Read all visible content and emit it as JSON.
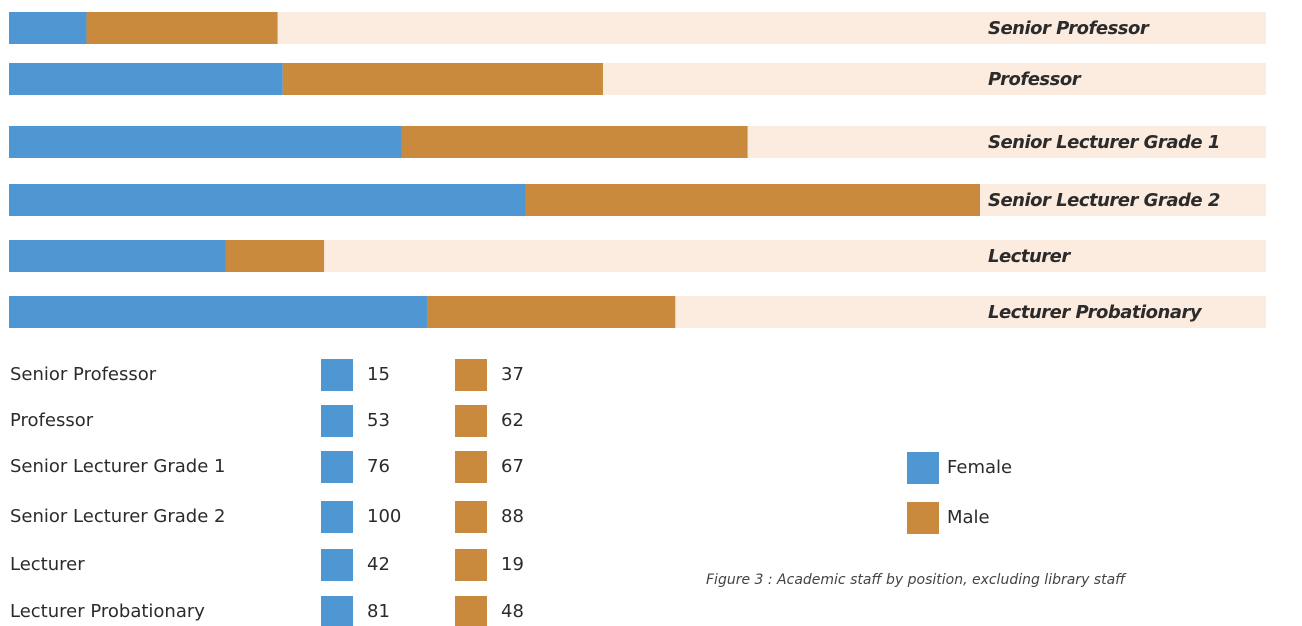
{
  "chart_data": {
    "type": "bar",
    "caption": "Figure 3 : Academic staff by position, excluding library staff",
    "categories": [
      "Senior Professor",
      "Professor",
      "Senior Lecturer Grade 1",
      "Senior Lecturer Grade 2",
      "Lecturer",
      "Lecturer Probationary"
    ],
    "series": [
      {
        "name": "Female",
        "color": "#4f97d3",
        "values": [
          15,
          53,
          76,
          100,
          42,
          81
        ]
      },
      {
        "name": "Male",
        "color": "#c98a3d",
        "values": [
          37,
          62,
          67,
          88,
          19,
          48
        ]
      }
    ],
    "track_color": "#fcebdf",
    "stacked": true,
    "orientation": "horizontal"
  }
}
